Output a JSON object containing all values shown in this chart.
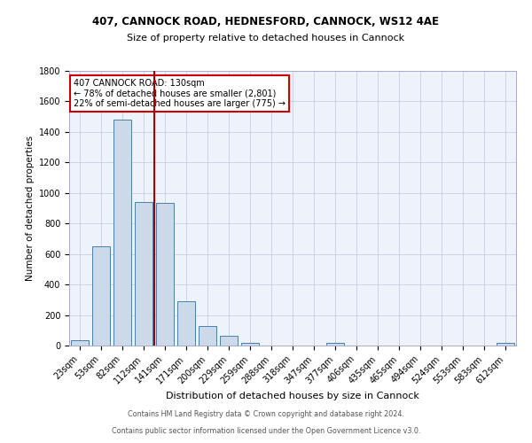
{
  "title1": "407, CANNOCK ROAD, HEDNESFORD, CANNOCK, WS12 4AE",
  "title2": "Size of property relative to detached houses in Cannock",
  "xlabel": "Distribution of detached houses by size in Cannock",
  "ylabel": "Number of detached properties",
  "bins": [
    "23sqm",
    "53sqm",
    "82sqm",
    "112sqm",
    "141sqm",
    "171sqm",
    "200sqm",
    "229sqm",
    "259sqm",
    "288sqm",
    "318sqm",
    "347sqm",
    "377sqm",
    "406sqm",
    "435sqm",
    "465sqm",
    "494sqm",
    "524sqm",
    "553sqm",
    "583sqm",
    "612sqm"
  ],
  "values": [
    35,
    650,
    1480,
    940,
    935,
    290,
    130,
    62,
    20,
    0,
    0,
    0,
    15,
    0,
    0,
    0,
    0,
    0,
    0,
    0,
    15
  ],
  "bar_color": "#ccd9e8",
  "bar_edge_color": "#4a7faa",
  "red_line_color": "#aa0000",
  "annotation_text": "407 CANNOCK ROAD: 130sqm\n← 78% of detached houses are smaller (2,801)\n22% of semi-detached houses are larger (775) →",
  "annotation_box_color": "white",
  "annotation_box_edge_color": "#cc0000",
  "footer1": "Contains HM Land Registry data © Crown copyright and database right 2024.",
  "footer2": "Contains public sector information licensed under the Open Government Licence v3.0.",
  "bg_color": "#eef2fa",
  "grid_color": "#c8cfe0",
  "ylim": [
    0,
    1800
  ],
  "yticks": [
    0,
    200,
    400,
    600,
    800,
    1000,
    1200,
    1400,
    1600,
    1800
  ],
  "red_line_bin": 3.5,
  "title1_fontsize": 8.5,
  "title2_fontsize": 8.0,
  "xlabel_fontsize": 8.0,
  "ylabel_fontsize": 7.5,
  "tick_fontsize": 7.0,
  "ann_fontsize": 7.0,
  "footer_fontsize": 5.8
}
